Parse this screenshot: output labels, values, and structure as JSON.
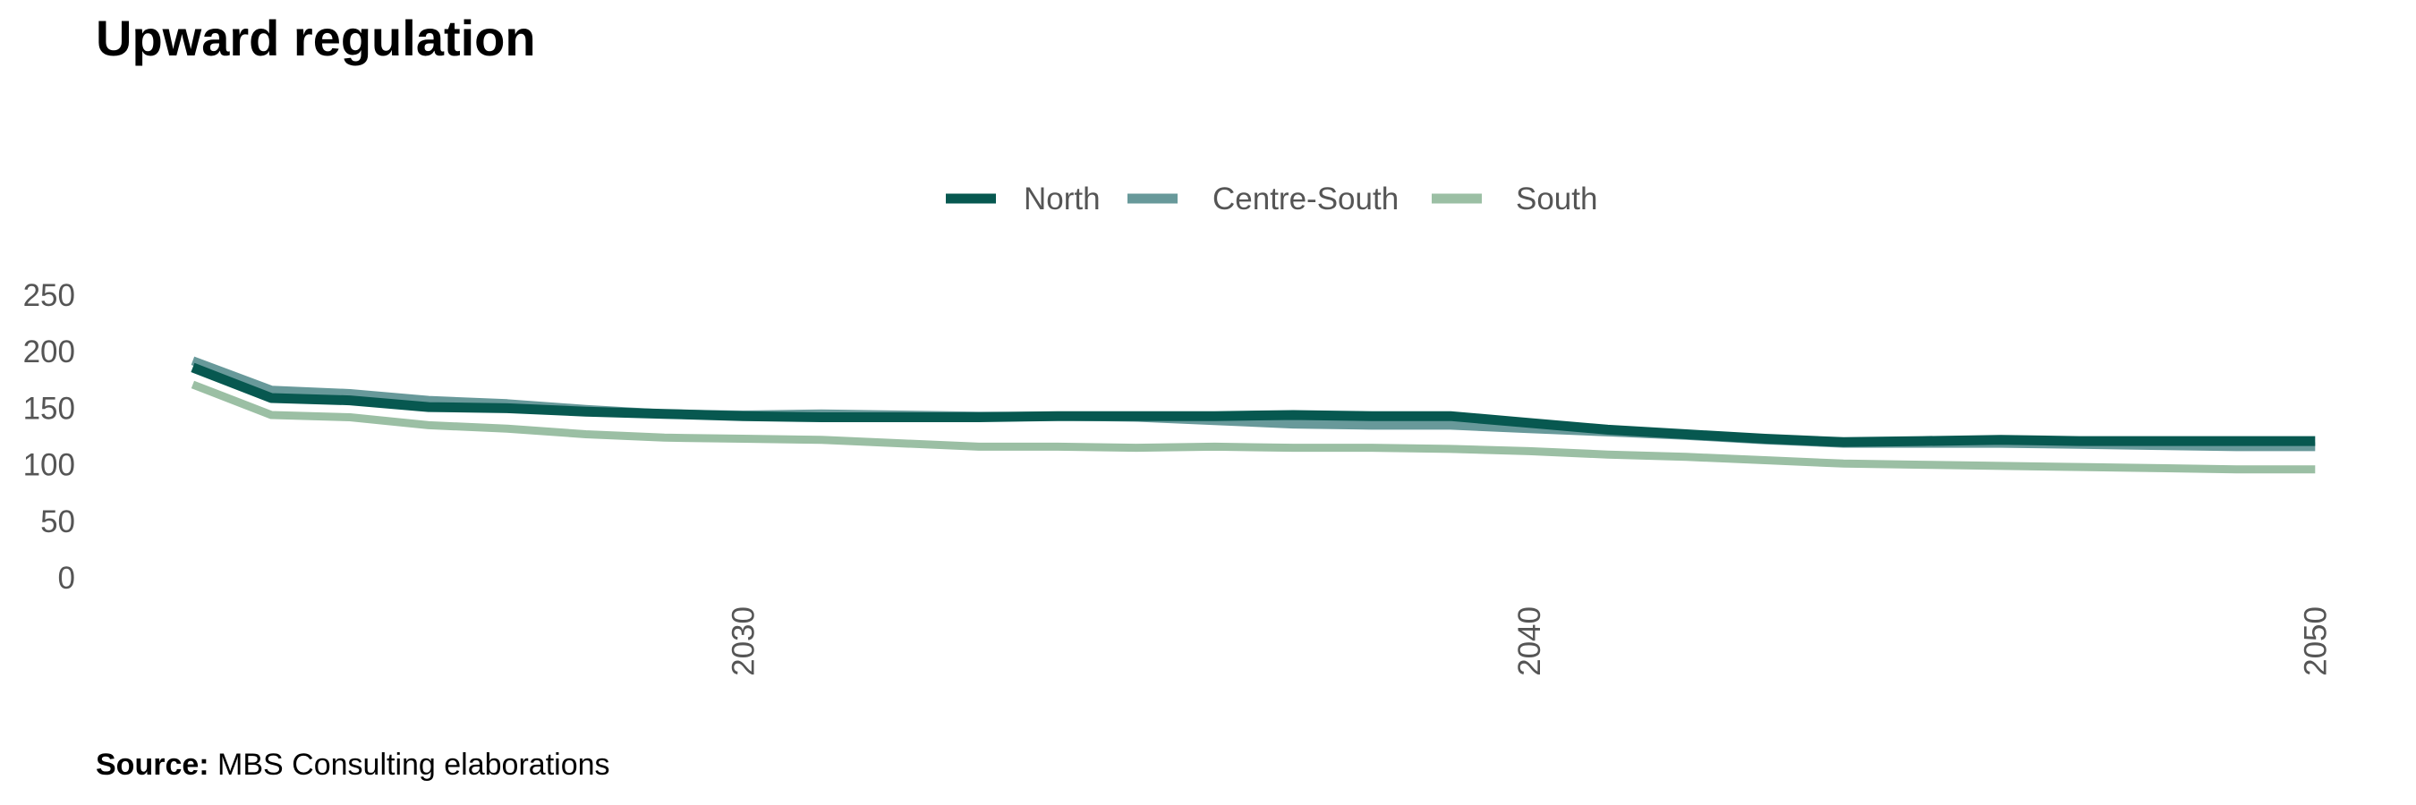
{
  "title": "Upward regulation",
  "source": {
    "label": "Source:",
    "text": "MBS Consulting elaborations"
  },
  "colors": {
    "North": "#075850",
    "Centre-South": "#68999a",
    "South": "#9bbfa4",
    "tick_text": "#555555"
  },
  "chart_data": {
    "type": "line",
    "title": "Upward regulation",
    "xlabel": "",
    "ylabel": "",
    "x": [
      2023,
      2024,
      2025,
      2026,
      2027,
      2028,
      2029,
      2030,
      2031,
      2032,
      2033,
      2034,
      2035,
      2036,
      2037,
      2038,
      2039,
      2040,
      2041,
      2042,
      2043,
      2044,
      2045,
      2046,
      2047,
      2048,
      2049,
      2050
    ],
    "xticks": [
      2030,
      2040,
      2050
    ],
    "yticks": [
      0,
      50,
      100,
      150,
      200,
      250
    ],
    "xlim": [
      2021.8,
      2050.6
    ],
    "ylim": [
      0,
      250
    ],
    "grid": false,
    "legend_position": "top-center",
    "series": [
      {
        "name": "North",
        "values": [
          186,
          159,
          157,
          151,
          150,
          147,
          145,
          143,
          142,
          142,
          142,
          143,
          143,
          143,
          144,
          143,
          143,
          137,
          131,
          127,
          123,
          120,
          121,
          122,
          121,
          121,
          121,
          121
        ]
      },
      {
        "name": "Centre-South",
        "values": [
          192,
          166,
          163,
          157,
          154,
          149,
          145,
          144,
          145,
          144,
          143,
          143,
          142,
          139,
          136,
          135,
          135,
          132,
          129,
          126,
          122,
          119,
          119,
          119,
          118,
          117,
          116,
          116
        ]
      },
      {
        "name": "South",
        "values": [
          171,
          144,
          142,
          135,
          132,
          127,
          124,
          123,
          122,
          119,
          116,
          116,
          115,
          116,
          115,
          115,
          114,
          112,
          109,
          107,
          104,
          101,
          100,
          99,
          98,
          97,
          96,
          96
        ]
      }
    ]
  }
}
